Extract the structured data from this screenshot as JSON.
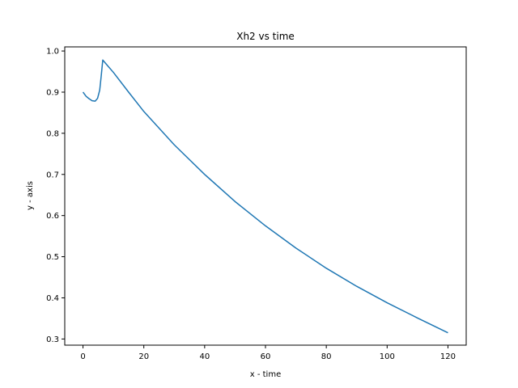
{
  "chart_data": {
    "type": "line",
    "title": "Xh2 vs time",
    "xlabel": "x - time",
    "ylabel": "y - axis",
    "xlim": [
      -6,
      126
    ],
    "ylim": [
      0.285,
      1.01
    ],
    "xticks": [
      0,
      20,
      40,
      60,
      80,
      100,
      120
    ],
    "yticks": [
      0.3,
      0.4,
      0.5,
      0.6,
      0.7,
      0.8,
      0.9,
      1.0
    ],
    "xtick_labels": [
      "0",
      "20",
      "40",
      "60",
      "80",
      "100",
      "120"
    ],
    "ytick_labels": [
      "0.3",
      "0.4",
      "0.5",
      "0.6",
      "0.7",
      "0.8",
      "0.9",
      "1.0"
    ],
    "grid": false,
    "legend": "none",
    "series": [
      {
        "color": "#1f77b4",
        "x": [
          0,
          1,
          2,
          3,
          4,
          4.8,
          5.5,
          6.0,
          6.5,
          8,
          10,
          15,
          20,
          30,
          40,
          50,
          60,
          70,
          80,
          90,
          100,
          110,
          120
        ],
        "y": [
          0.9,
          0.89,
          0.884,
          0.879,
          0.878,
          0.885,
          0.905,
          0.94,
          0.978,
          0.965,
          0.948,
          0.9,
          0.853,
          0.772,
          0.7,
          0.634,
          0.575,
          0.521,
          0.472,
          0.428,
          0.388,
          0.351,
          0.315
        ]
      }
    ]
  }
}
